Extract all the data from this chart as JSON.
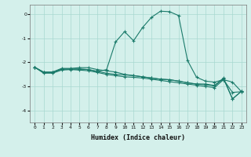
{
  "xlabel": "Humidex (Indice chaleur)",
  "bg_color": "#d4f0eb",
  "grid_color": "#a8d8d0",
  "line_color": "#1a7a6a",
  "xlim": [
    -0.5,
    23.5
  ],
  "ylim": [
    -4.5,
    0.4
  ],
  "yticks": [
    0,
    -1,
    -2,
    -3,
    -4
  ],
  "xtick_labels": [
    "0",
    "1",
    "2",
    "3",
    "4",
    "5",
    "6",
    "7",
    "8",
    "9",
    "10",
    "11",
    "12",
    "13",
    "14",
    "15",
    "16",
    "17",
    "18",
    "19",
    "20",
    "21",
    "22",
    "23"
  ],
  "series": [
    [
      -2.2,
      -2.45,
      -2.45,
      -2.32,
      -2.3,
      -2.32,
      -2.35,
      -2.42,
      -2.5,
      -2.55,
      -2.6,
      -2.62,
      -2.65,
      -2.7,
      -2.75,
      -2.8,
      -2.85,
      -2.9,
      -2.95,
      -3.0,
      -3.05,
      -2.72,
      -3.25,
      -3.22
    ],
    [
      -2.2,
      -2.42,
      -2.42,
      -2.28,
      -2.28,
      -2.28,
      -2.3,
      -2.38,
      -2.45,
      -2.5,
      -2.52,
      -2.55,
      -2.6,
      -2.65,
      -2.7,
      -2.72,
      -2.78,
      -2.85,
      -2.9,
      -2.93,
      -2.98,
      -2.68,
      -3.52,
      -3.2
    ],
    [
      -2.2,
      -2.4,
      -2.4,
      -2.25,
      -2.25,
      -2.22,
      -2.22,
      -2.3,
      -2.35,
      -2.4,
      -2.5,
      -2.55,
      -2.6,
      -2.65,
      -2.7,
      -2.72,
      -2.78,
      -2.85,
      -2.9,
      -2.9,
      -2.96,
      -2.65,
      -3.52,
      -3.2
    ],
    [
      -2.2,
      -2.42,
      -2.42,
      -2.28,
      -2.28,
      -2.28,
      -2.3,
      -2.38,
      -2.3,
      -1.15,
      -0.72,
      -1.1,
      -0.55,
      -0.12,
      0.13,
      0.11,
      -0.05,
      -1.92,
      -2.62,
      -2.78,
      -2.82,
      -2.72,
      -2.82,
      -3.22
    ]
  ]
}
